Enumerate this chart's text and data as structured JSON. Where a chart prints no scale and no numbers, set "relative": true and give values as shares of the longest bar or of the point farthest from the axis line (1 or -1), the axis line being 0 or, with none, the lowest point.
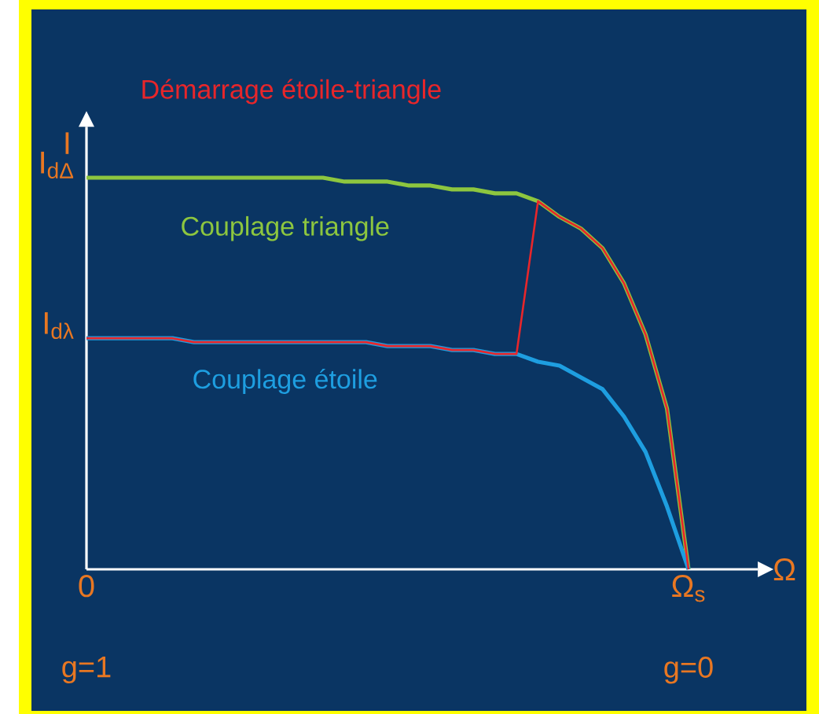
{
  "chart_data": {
    "type": "line",
    "relative": true,
    "xlabel": "Ω",
    "ylabel": "I",
    "categories": [
      "0",
      null,
      null,
      null,
      null,
      null,
      null,
      null,
      null,
      null,
      null,
      null,
      null,
      null,
      null,
      null,
      null,
      null,
      null,
      null,
      null,
      null,
      null,
      null,
      null,
      null,
      null,
      null,
      "Ω$_{s}$"
    ],
    "series": [
      {
        "name": "Couplage triangle",
        "color": "#8dc63f",
        "values": [
          1.0,
          1.0,
          1.0,
          1.0,
          1.0,
          1.0,
          1.0,
          1.0,
          1.0,
          1.0,
          1.0,
          1.0,
          0.99,
          0.99,
          0.99,
          0.98,
          0.98,
          0.97,
          0.97,
          0.96,
          0.96,
          0.94,
          0.9,
          0.87,
          0.82,
          0.73,
          0.6,
          0.41,
          0
        ]
      },
      {
        "name": "Couplage étoile",
        "color": "#1e9ee0",
        "values": [
          0.59,
          0.59,
          0.59,
          0.59,
          0.59,
          0.58,
          0.58,
          0.58,
          0.58,
          0.58,
          0.58,
          0.58,
          0.58,
          0.58,
          0.57,
          0.57,
          0.57,
          0.56,
          0.56,
          0.55,
          0.55,
          0.53,
          0.52,
          0.49,
          0.46,
          0.39,
          0.3,
          0.16,
          0
        ]
      },
      {
        "name": "Démarrage étoile-triangle",
        "color": "#e8262a",
        "values": [
          0.59,
          0.59,
          0.59,
          0.59,
          0.59,
          0.58,
          0.58,
          0.58,
          0.58,
          0.58,
          0.58,
          0.58,
          0.58,
          0.58,
          0.57,
          0.57,
          0.57,
          0.56,
          0.56,
          0.55,
          0.55,
          0.94,
          0.9,
          0.87,
          0.82,
          0.73,
          0.6,
          0.41,
          0
        ]
      }
    ],
    "annotations": [
      {
        "text": "I$_{dΔ}$",
        "x": "0",
        "y": 1.0
      },
      {
        "text": "I$_{dλ}$",
        "x": "0",
        "y": 0.59
      },
      "g=1",
      "g=0"
    ]
  }
}
